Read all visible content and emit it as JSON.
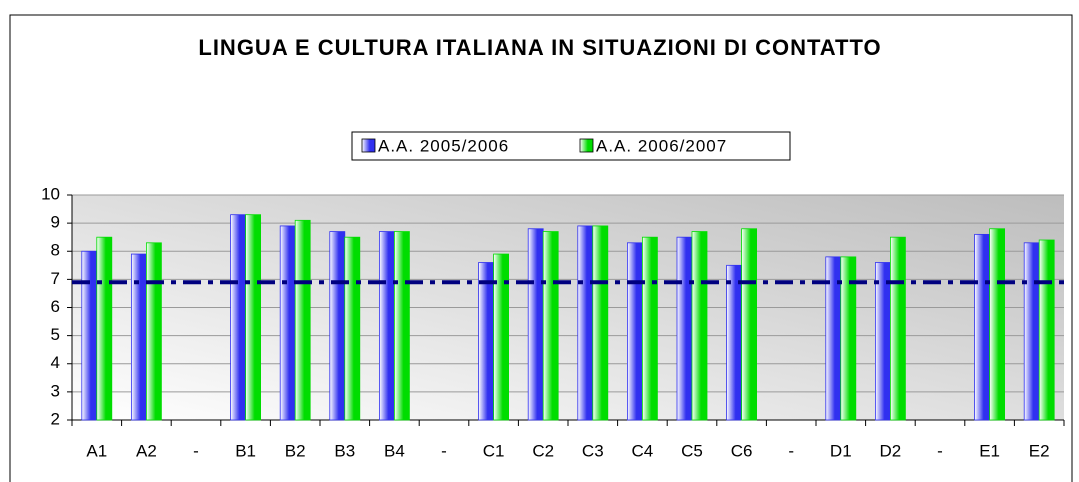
{
  "chart_data": {
    "type": "bar",
    "title": "LINGUA E CULTURA ITALIANA IN SITUAZIONI DI CONTATTO",
    "categories": [
      "A1",
      "A2",
      "-",
      "B1",
      "B2",
      "B3",
      "B4",
      "-",
      "C1",
      "C2",
      "C3",
      "C4",
      "C5",
      "C6",
      "-",
      "D1",
      "D2",
      "-",
      "E1",
      "E2"
    ],
    "series": [
      {
        "name": "A.A. 2005/2006",
        "color": "#3030f0",
        "values": [
          8.0,
          7.9,
          null,
          9.3,
          8.9,
          8.7,
          8.7,
          null,
          7.6,
          8.8,
          8.9,
          8.3,
          8.5,
          7.5,
          null,
          7.8,
          7.6,
          null,
          8.6,
          8.3
        ]
      },
      {
        "name": "A.A. 2006/2007",
        "color": "#00dd00",
        "values": [
          8.5,
          8.3,
          null,
          9.3,
          9.1,
          8.5,
          8.7,
          null,
          7.9,
          8.7,
          8.9,
          8.5,
          8.7,
          8.8,
          null,
          7.8,
          8.5,
          null,
          8.8,
          8.4
        ]
      }
    ],
    "reference_line": {
      "value": 6.9,
      "color": "#00007f"
    },
    "ylim": [
      2,
      10
    ],
    "yticks": [
      2,
      3,
      4,
      5,
      6,
      7,
      8,
      9,
      10
    ],
    "grid": true,
    "legend": "top"
  }
}
